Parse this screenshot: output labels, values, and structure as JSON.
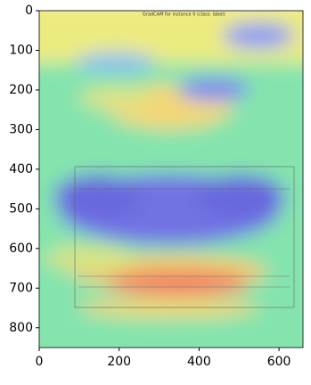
{
  "chart_data": {
    "type": "image",
    "title": "GradCAM for instance 0 (class: label)",
    "xlim": [
      0,
      660
    ],
    "ylim": [
      850,
      0
    ],
    "xticks": [
      0,
      200,
      400,
      600
    ],
    "yticks": [
      0,
      100,
      200,
      300,
      400,
      500,
      600,
      700,
      800
    ]
  }
}
